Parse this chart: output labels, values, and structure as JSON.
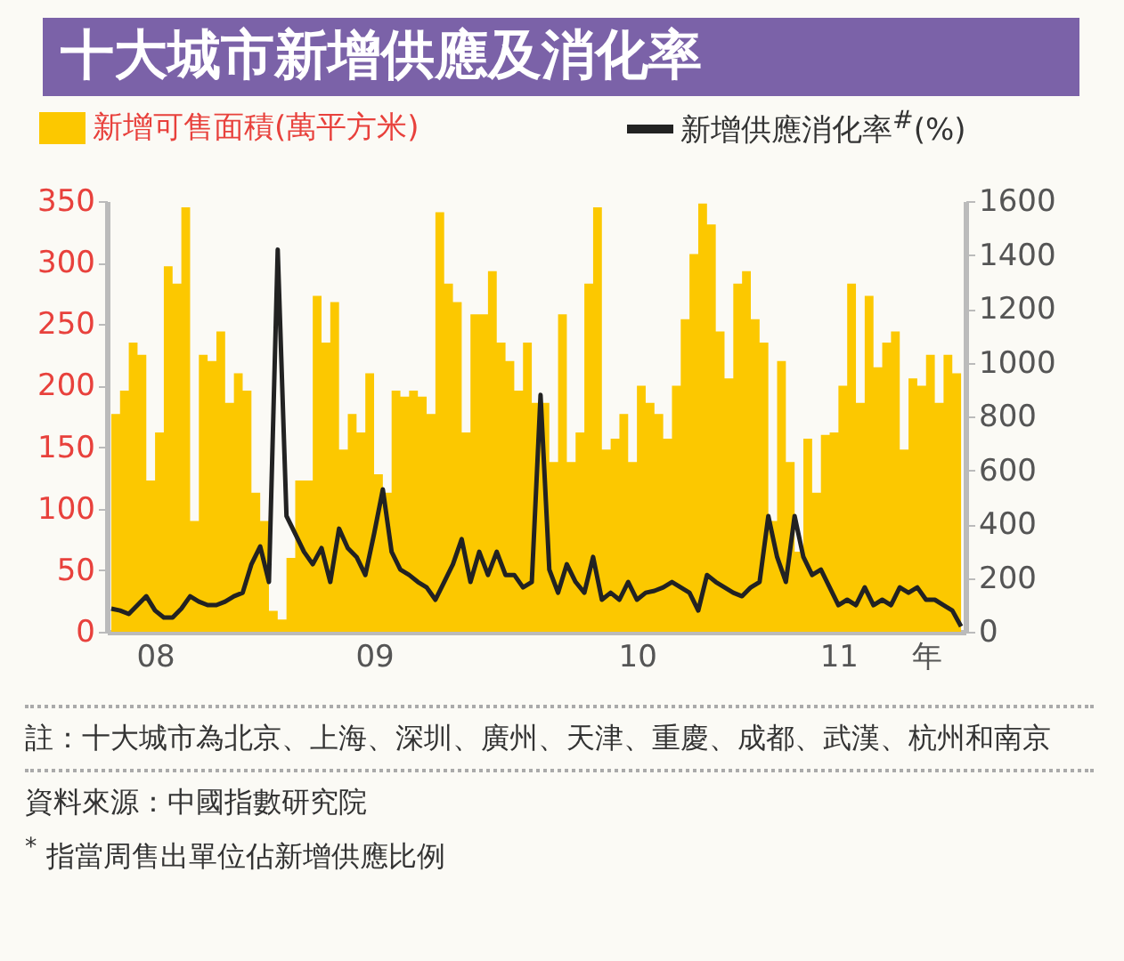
{
  "chart_data": {
    "type": "area",
    "title": "十大城市新增供應及消化率",
    "categories": [
      null,
      null,
      null,
      null,
      null,
      "08",
      null,
      null,
      null,
      null,
      null,
      null,
      null,
      null,
      null,
      null,
      null,
      null,
      null,
      null,
      null,
      null,
      null,
      null,
      null,
      null,
      null,
      null,
      null,
      null,
      "09",
      null,
      null,
      null,
      null,
      null,
      null,
      null,
      null,
      null,
      null,
      null,
      null,
      null,
      null,
      null,
      null,
      null,
      null,
      null,
      null,
      null,
      null,
      null,
      null,
      null,
      null,
      null,
      null,
      null,
      "10",
      null,
      null,
      null,
      null,
      null,
      null,
      null,
      null,
      null,
      null,
      null,
      null,
      null,
      null,
      null,
      null,
      null,
      null,
      null,
      null,
      null,
      null,
      "11",
      null,
      null,
      null,
      null,
      null,
      null,
      null,
      null,
      null,
      "年",
      null,
      null,
      null,
      null
    ],
    "series": [
      {
        "name": "新增可售面積(萬平方米)",
        "color": "#fcc800",
        "values": [
          177,
          196,
          235,
          225,
          123,
          162,
          297,
          283,
          345,
          90,
          225,
          220,
          244,
          186,
          210,
          196,
          113,
          90,
          17,
          10,
          60,
          123,
          123,
          273,
          235,
          268,
          148,
          177,
          162,
          210,
          128,
          113,
          196,
          191,
          196,
          191,
          177,
          341,
          283,
          268,
          162,
          258,
          258,
          293,
          235,
          220,
          196,
          235,
          186,
          186,
          138,
          258,
          138,
          162,
          283,
          345,
          148,
          157,
          177,
          138,
          200,
          186,
          177,
          157,
          200,
          254,
          307,
          348,
          331,
          244,
          206,
          283,
          293,
          254,
          235,
          90,
          220,
          138,
          65,
          157,
          113,
          160,
          162,
          200,
          283,
          186,
          273,
          215,
          235,
          244,
          148,
          206,
          200,
          225,
          186,
          225,
          210,
          307
        ]
      },
      {
        "name": "新增供應消化率$^{#}$(%)",
        "type": "line",
        "axis": "y2",
        "color": "#222222",
        "values": [
          86,
          79,
          66,
          99,
          132,
          79,
          53,
          53,
          86,
          132,
          112,
          99,
          99,
          112,
          132,
          145,
          251,
          317,
          185,
          1420,
          430,
          364,
          297,
          251,
          311,
          185,
          383,
          311,
          278,
          211,
          364,
          529,
          297,
          231,
          211,
          185,
          165,
          119,
          185,
          251,
          344,
          185,
          297,
          211,
          297,
          211,
          211,
          165,
          185,
          880,
          231,
          145,
          251,
          185,
          145,
          278,
          119,
          145,
          119,
          185,
          119,
          145,
          152,
          165,
          185,
          165,
          145,
          79,
          211,
          185,
          165,
          145,
          132,
          165,
          185,
          430,
          278,
          185,
          430,
          278,
          211,
          231,
          165,
          99,
          119,
          99,
          165,
          99,
          119,
          99,
          165,
          145,
          165,
          119,
          119,
          99,
          79,
          20
        ]
      }
    ],
    "ylim": [
      0,
      350
    ],
    "yticks": [
      0,
      50,
      100,
      150,
      200,
      250,
      300,
      350
    ],
    "y2lim": [
      0,
      1600
    ],
    "y2ticks": [
      0,
      200,
      400,
      600,
      800,
      1000,
      1200,
      1400,
      1600
    ],
    "legend": "top",
    "grid": false,
    "annotations": [
      "註：十大城市為北京、上海、深圳、廣州、天津、重慶、成都、武漢、杭州和南京",
      "資料來源：中國指數研究院",
      "$^{*}$ 指當周售出單位佔新增供應比例"
    ]
  }
}
